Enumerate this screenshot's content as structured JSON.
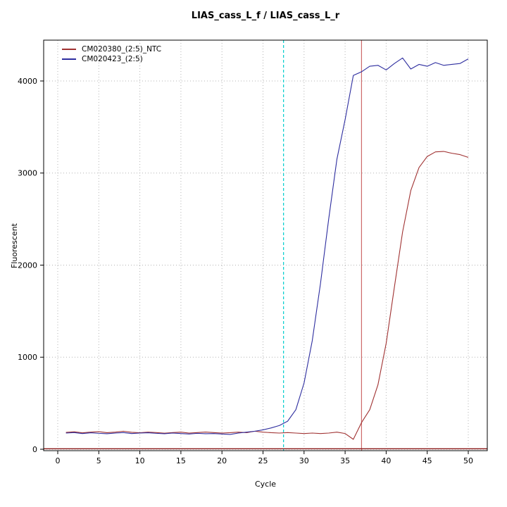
{
  "chart_data": {
    "type": "line",
    "title": "LIAS_cass_L_f / LIAS_cass_L_r",
    "xlabel": "Cycle",
    "ylabel": "Fluorescent",
    "xlim": [
      0,
      50
    ],
    "ylim": [
      0,
      4400
    ],
    "xticks": [
      0,
      5,
      10,
      15,
      20,
      25,
      30,
      35,
      40,
      45,
      50
    ],
    "yticks": [
      0,
      1000,
      2000,
      3000,
      4000
    ],
    "grid": true,
    "legend_position": "top-left",
    "x": [
      1,
      2,
      3,
      4,
      5,
      6,
      7,
      8,
      9,
      10,
      11,
      12,
      13,
      14,
      15,
      16,
      17,
      18,
      19,
      20,
      21,
      22,
      23,
      24,
      25,
      26,
      27,
      28,
      29,
      30,
      31,
      32,
      33,
      34,
      35,
      36,
      37,
      38,
      39,
      40,
      41,
      42,
      43,
      44,
      45,
      46,
      47,
      48,
      49,
      50
    ],
    "series": [
      {
        "name": "CM020380_(2:5)_NTC",
        "color": "#a03232",
        "values": [
          183,
          190,
          178,
          186,
          191,
          180,
          186,
          196,
          184,
          179,
          186,
          181,
          175,
          181,
          186,
          176,
          181,
          187,
          181,
          176,
          180,
          186,
          180,
          196,
          186,
          180,
          176,
          181,
          176,
          171,
          176,
          171,
          176,
          186,
          171,
          108,
          290,
          430,
          700,
          1150,
          1760,
          2360,
          2810,
          3060,
          3180,
          3230,
          3235,
          3215,
          3200,
          3170
        ]
      },
      {
        "name": "CM020423_(2:5)",
        "color": "#2d2d9f",
        "values": [
          176,
          181,
          171,
          179,
          173,
          169,
          176,
          181,
          171,
          176,
          179,
          173,
          169,
          176,
          171,
          166,
          173,
          169,
          171,
          166,
          161,
          176,
          186,
          196,
          211,
          232,
          258,
          305,
          430,
          720,
          1180,
          1800,
          2500,
          3150,
          3580,
          4060,
          4100,
          4160,
          4170,
          4120,
          4190,
          4250,
          4130,
          4180,
          4160,
          4200,
          4170,
          4180,
          4190,
          4240
        ]
      }
    ],
    "vlines": [
      {
        "x": 27.5,
        "color": "#00cdcd",
        "style": "dashed"
      },
      {
        "x": 37.0,
        "color": "#cd6a6a",
        "style": "solid"
      }
    ],
    "hlines": [
      {
        "y": 5,
        "color": "#8b1a1a",
        "style": "solid"
      }
    ],
    "grid_color": "#b4b4b4",
    "box_color": "#000000"
  }
}
